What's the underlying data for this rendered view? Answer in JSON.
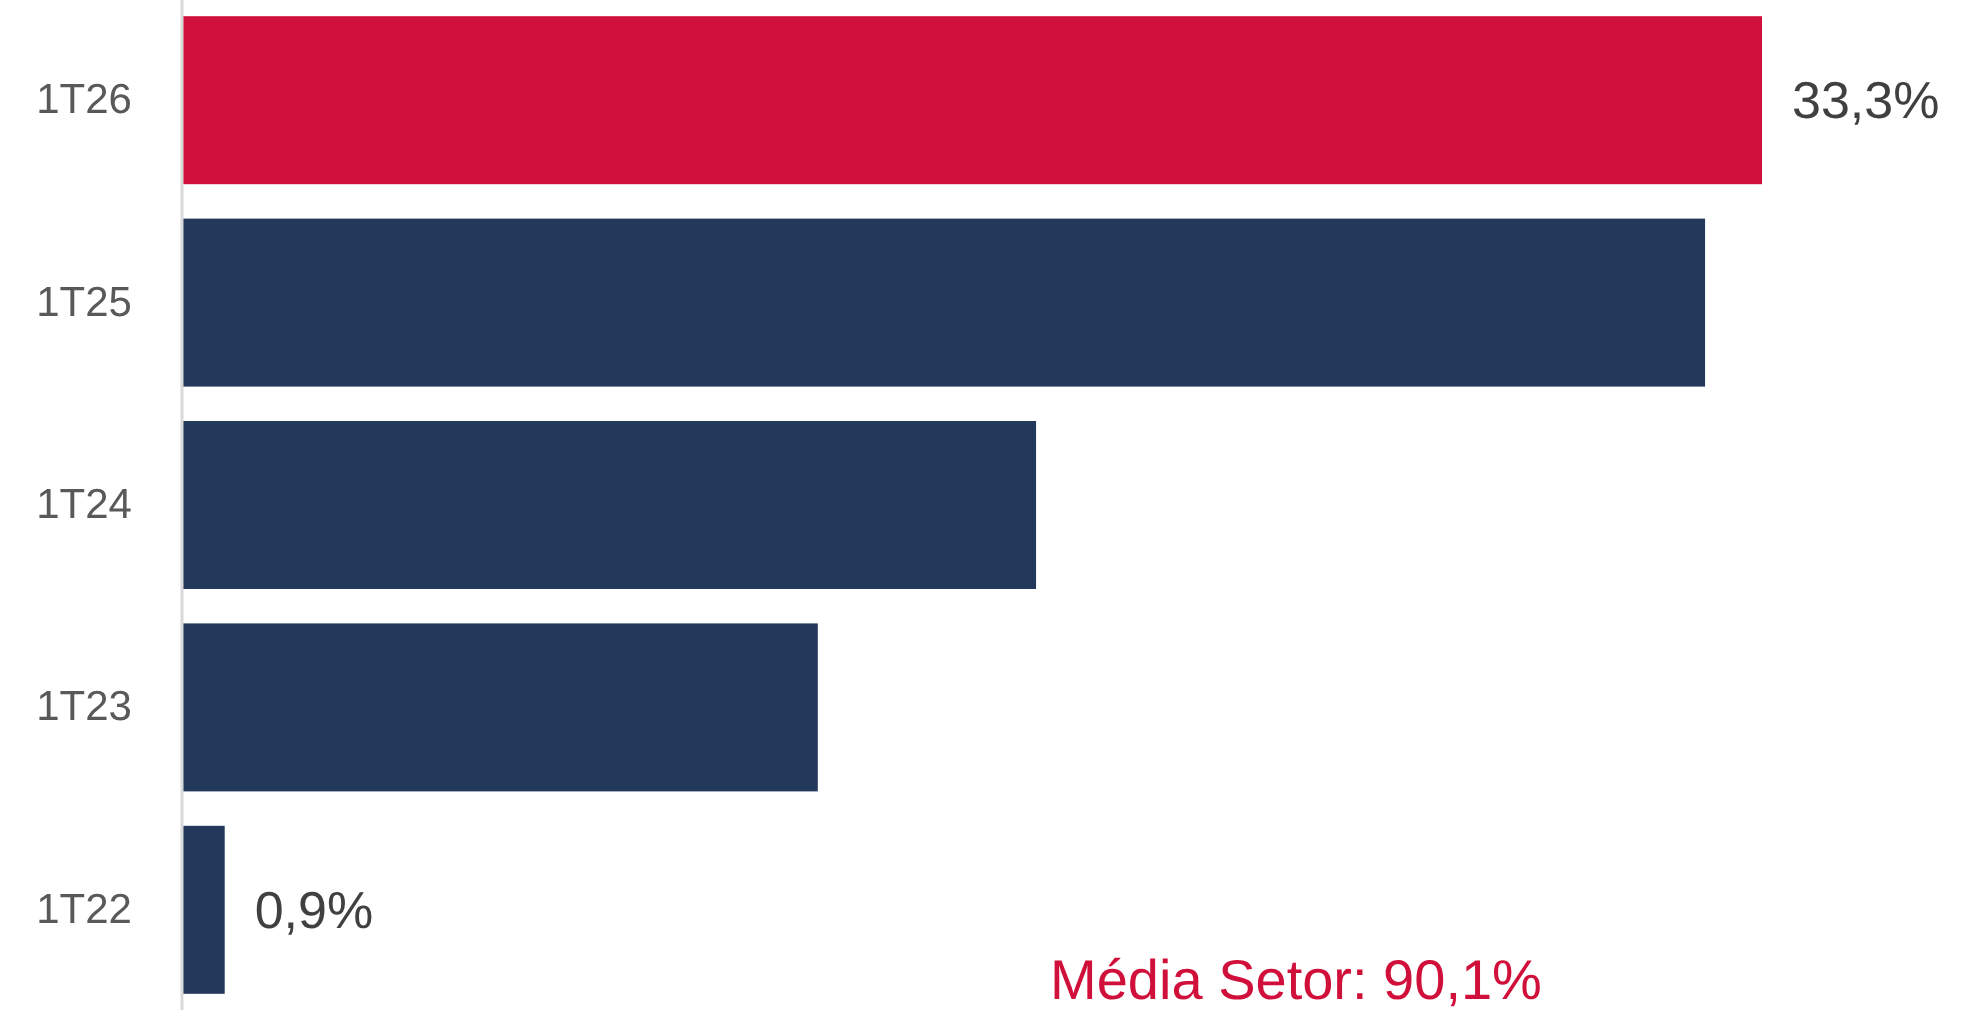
{
  "chart_data": {
    "type": "bar",
    "orientation": "horizontal",
    "categories": [
      "1T26",
      "1T25",
      "1T24",
      "1T23",
      "1T22"
    ],
    "values": [
      33.3,
      32.1,
      18.0,
      13.4,
      0.9
    ],
    "colors": [
      "#d0103a",
      "#23395b",
      "#23395b",
      "#23395b",
      "#23395b"
    ],
    "value_labels": [
      "33,3%",
      null,
      null,
      null,
      "0,9%"
    ],
    "annotations": [
      "Média Setor: 90,1%"
    ]
  }
}
